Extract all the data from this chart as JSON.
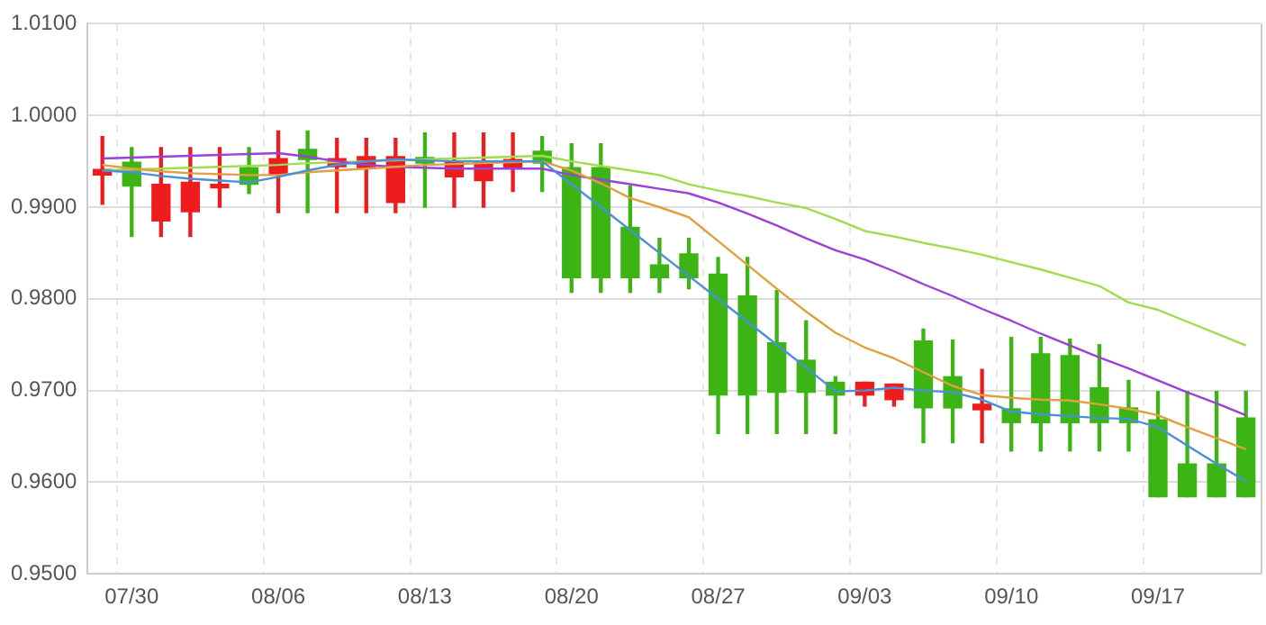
{
  "chart_data": {
    "type": "candlestick",
    "categories": [
      null,
      "07/30",
      null,
      null,
      null,
      null,
      "08/06",
      null,
      null,
      null,
      null,
      "08/13",
      null,
      null,
      null,
      null,
      "08/20",
      null,
      null,
      null,
      null,
      "08/27",
      null,
      null,
      null,
      null,
      "09/03",
      null,
      null,
      null,
      null,
      "09/10",
      null,
      null,
      null,
      null,
      "09/17",
      null,
      null,
      null
    ],
    "ohlc": [
      [
        0.9935,
        0.9977,
        0.9903,
        0.9941
      ],
      [
        0.9949,
        0.9965,
        0.9868,
        0.9923
      ],
      [
        0.9885,
        0.9965,
        0.9868,
        0.9925
      ],
      [
        0.9895,
        0.9965,
        0.9868,
        0.9927
      ],
      [
        0.9921,
        0.9965,
        0.99,
        0.9925
      ],
      [
        0.9943,
        0.9965,
        0.9915,
        0.9925
      ],
      [
        0.9935,
        0.9983,
        0.9894,
        0.9953
      ],
      [
        0.9963,
        0.9983,
        0.9894,
        0.9952
      ],
      [
        0.9944,
        0.9975,
        0.9894,
        0.9953
      ],
      [
        0.9942,
        0.9975,
        0.9894,
        0.9955
      ],
      [
        0.9905,
        0.9975,
        0.9894,
        0.9955
      ],
      [
        0.9954,
        0.9981,
        0.99,
        0.9948
      ],
      [
        0.9933,
        0.9981,
        0.99,
        0.995
      ],
      [
        0.9929,
        0.9981,
        0.99,
        0.995
      ],
      [
        0.9942,
        0.9981,
        0.9917,
        0.9952
      ],
      [
        0.9961,
        0.9977,
        0.9917,
        0.9948
      ],
      [
        0.9943,
        0.9969,
        0.9807,
        0.9823
      ],
      [
        0.9943,
        0.9969,
        0.9807,
        0.9823
      ],
      [
        0.9878,
        0.9923,
        0.9807,
        0.9823
      ],
      [
        0.9837,
        0.9866,
        0.9807,
        0.9823
      ],
      [
        0.9849,
        0.9866,
        0.9811,
        0.9823
      ],
      [
        0.9827,
        0.9845,
        0.9653,
        0.9695
      ],
      [
        0.9803,
        0.9845,
        0.9653,
        0.9695
      ],
      [
        0.9752,
        0.9809,
        0.9653,
        0.9698
      ],
      [
        0.9733,
        0.9776,
        0.9653,
        0.9698
      ],
      [
        0.9709,
        0.9715,
        0.9653,
        0.9695
      ],
      [
        0.9695,
        0.9709,
        0.9683,
        0.9709
      ],
      [
        0.969,
        0.9707,
        0.9683,
        0.9707
      ],
      [
        0.9754,
        0.9767,
        0.9643,
        0.9681
      ],
      [
        0.9715,
        0.9755,
        0.9643,
        0.9681
      ],
      [
        0.9679,
        0.9723,
        0.9643,
        0.9685
      ],
      [
        0.968,
        0.9758,
        0.9634,
        0.9665
      ],
      [
        0.974,
        0.9758,
        0.9634,
        0.9665
      ],
      [
        0.9738,
        0.9756,
        0.9634,
        0.9665
      ],
      [
        0.9703,
        0.975,
        0.9634,
        0.9665
      ],
      [
        0.9681,
        0.9711,
        0.9634,
        0.9665
      ],
      [
        0.9668,
        0.9699,
        0.9584,
        0.9584
      ],
      [
        0.962,
        0.9699,
        0.9584,
        0.9584
      ],
      [
        0.962,
        0.9699,
        0.9584,
        0.9584
      ],
      [
        0.967,
        0.9699,
        0.9584,
        0.9584
      ]
    ],
    "colors": [
      "#ee1c1c",
      "#3cb414",
      "#ee1c1c",
      "#ee1c1c",
      "#ee1c1c",
      "#3cb414",
      "#ee1c1c",
      "#3cb414",
      "#ee1c1c",
      "#ee1c1c",
      "#ee1c1c",
      "#3cb414",
      "#ee1c1c",
      "#ee1c1c",
      "#ee1c1c",
      "#3cb414",
      "#3cb414",
      "#3cb414",
      "#3cb414",
      "#3cb414",
      "#3cb414",
      "#3cb414",
      "#3cb414",
      "#3cb414",
      "#3cb414",
      "#3cb414",
      "#ee1c1c",
      "#ee1c1c",
      "#3cb414",
      "#3cb414",
      "#ee1c1c",
      "#3cb414",
      "#3cb414",
      "#3cb414",
      "#3cb414",
      "#3cb414",
      "#3cb414",
      "#3cb414",
      "#3cb414",
      "#3cb414"
    ],
    "series": [
      {
        "type": "line",
        "color": "#4a90d9",
        "values": [
          0.994,
          0.9938,
          0.9934,
          0.9931,
          0.9929,
          0.9927,
          0.9933,
          0.994,
          0.9946,
          0.995,
          0.9952,
          0.9951,
          0.995,
          0.995,
          0.995,
          0.995,
          0.9925,
          0.99,
          0.9875,
          0.985,
          0.9825,
          0.98,
          0.9775,
          0.975,
          0.9725,
          0.9699,
          0.97,
          0.9703,
          0.97,
          0.9698,
          0.969,
          0.9677,
          0.9674,
          0.9672,
          0.967,
          0.9669,
          0.966,
          0.964,
          0.962,
          0.9601
        ]
      },
      {
        "type": "line",
        "color": "#e0a040",
        "values": [
          0.9946,
          0.9942,
          0.9939,
          0.9937,
          0.9936,
          0.9935,
          0.9935,
          0.9938,
          0.994,
          0.9942,
          0.9944,
          0.9946,
          0.9947,
          0.9948,
          0.9949,
          0.995,
          0.994,
          0.9926,
          0.991,
          0.99,
          0.9889,
          0.9863,
          0.9837,
          0.9811,
          0.9786,
          0.9763,
          0.9747,
          0.9735,
          0.972,
          0.9705,
          0.9695,
          0.9692,
          0.969,
          0.9689,
          0.9685,
          0.968,
          0.9673,
          0.966,
          0.9648,
          0.9636
        ]
      },
      {
        "type": "line",
        "color": "#9b40d8",
        "values": [
          0.9953,
          0.9954,
          0.9955,
          0.9956,
          0.9957,
          0.9958,
          0.9959,
          0.9955,
          0.995,
          0.9946,
          0.9944,
          0.9943,
          0.9942,
          0.9942,
          0.9942,
          0.9942,
          0.9935,
          0.993,
          0.9925,
          0.992,
          0.9915,
          0.9905,
          0.9893,
          0.988,
          0.9866,
          0.9853,
          0.9843,
          0.983,
          0.9816,
          0.9803,
          0.9789,
          0.9776,
          0.9762,
          0.9749,
          0.9736,
          0.9724,
          0.9711,
          0.9698,
          0.9686,
          0.9673
        ]
      },
      {
        "type": "line",
        "color": "#a0dc50",
        "values": [
          0.994,
          0.9941,
          0.9942,
          0.9943,
          0.9944,
          0.9945,
          0.9946,
          0.9948,
          0.9949,
          0.995,
          0.9951,
          0.9952,
          0.9953,
          0.9954,
          0.9955,
          0.9956,
          0.995,
          0.9945,
          0.994,
          0.9935,
          0.9925,
          0.9918,
          0.9912,
          0.9905,
          0.9899,
          0.9887,
          0.9874,
          0.9868,
          0.9861,
          0.9855,
          0.9848,
          0.984,
          0.9832,
          0.9823,
          0.9814,
          0.9796,
          0.9788,
          0.9775,
          0.9762,
          0.9749
        ]
      }
    ],
    "ylim": [
      0.95,
      1.01
    ],
    "yticks": [
      {
        "value": 0.95,
        "label": "0.9500"
      },
      {
        "value": 0.96,
        "label": "0.9600"
      },
      {
        "value": 0.97,
        "label": "0.9700"
      },
      {
        "value": 0.98,
        "label": "0.9800"
      },
      {
        "value": 0.99,
        "label": "0.9900"
      },
      {
        "value": 1.0,
        "label": "1.0000"
      },
      {
        "value": 1.01,
        "label": "1.0100"
      }
    ],
    "grid": true
  }
}
